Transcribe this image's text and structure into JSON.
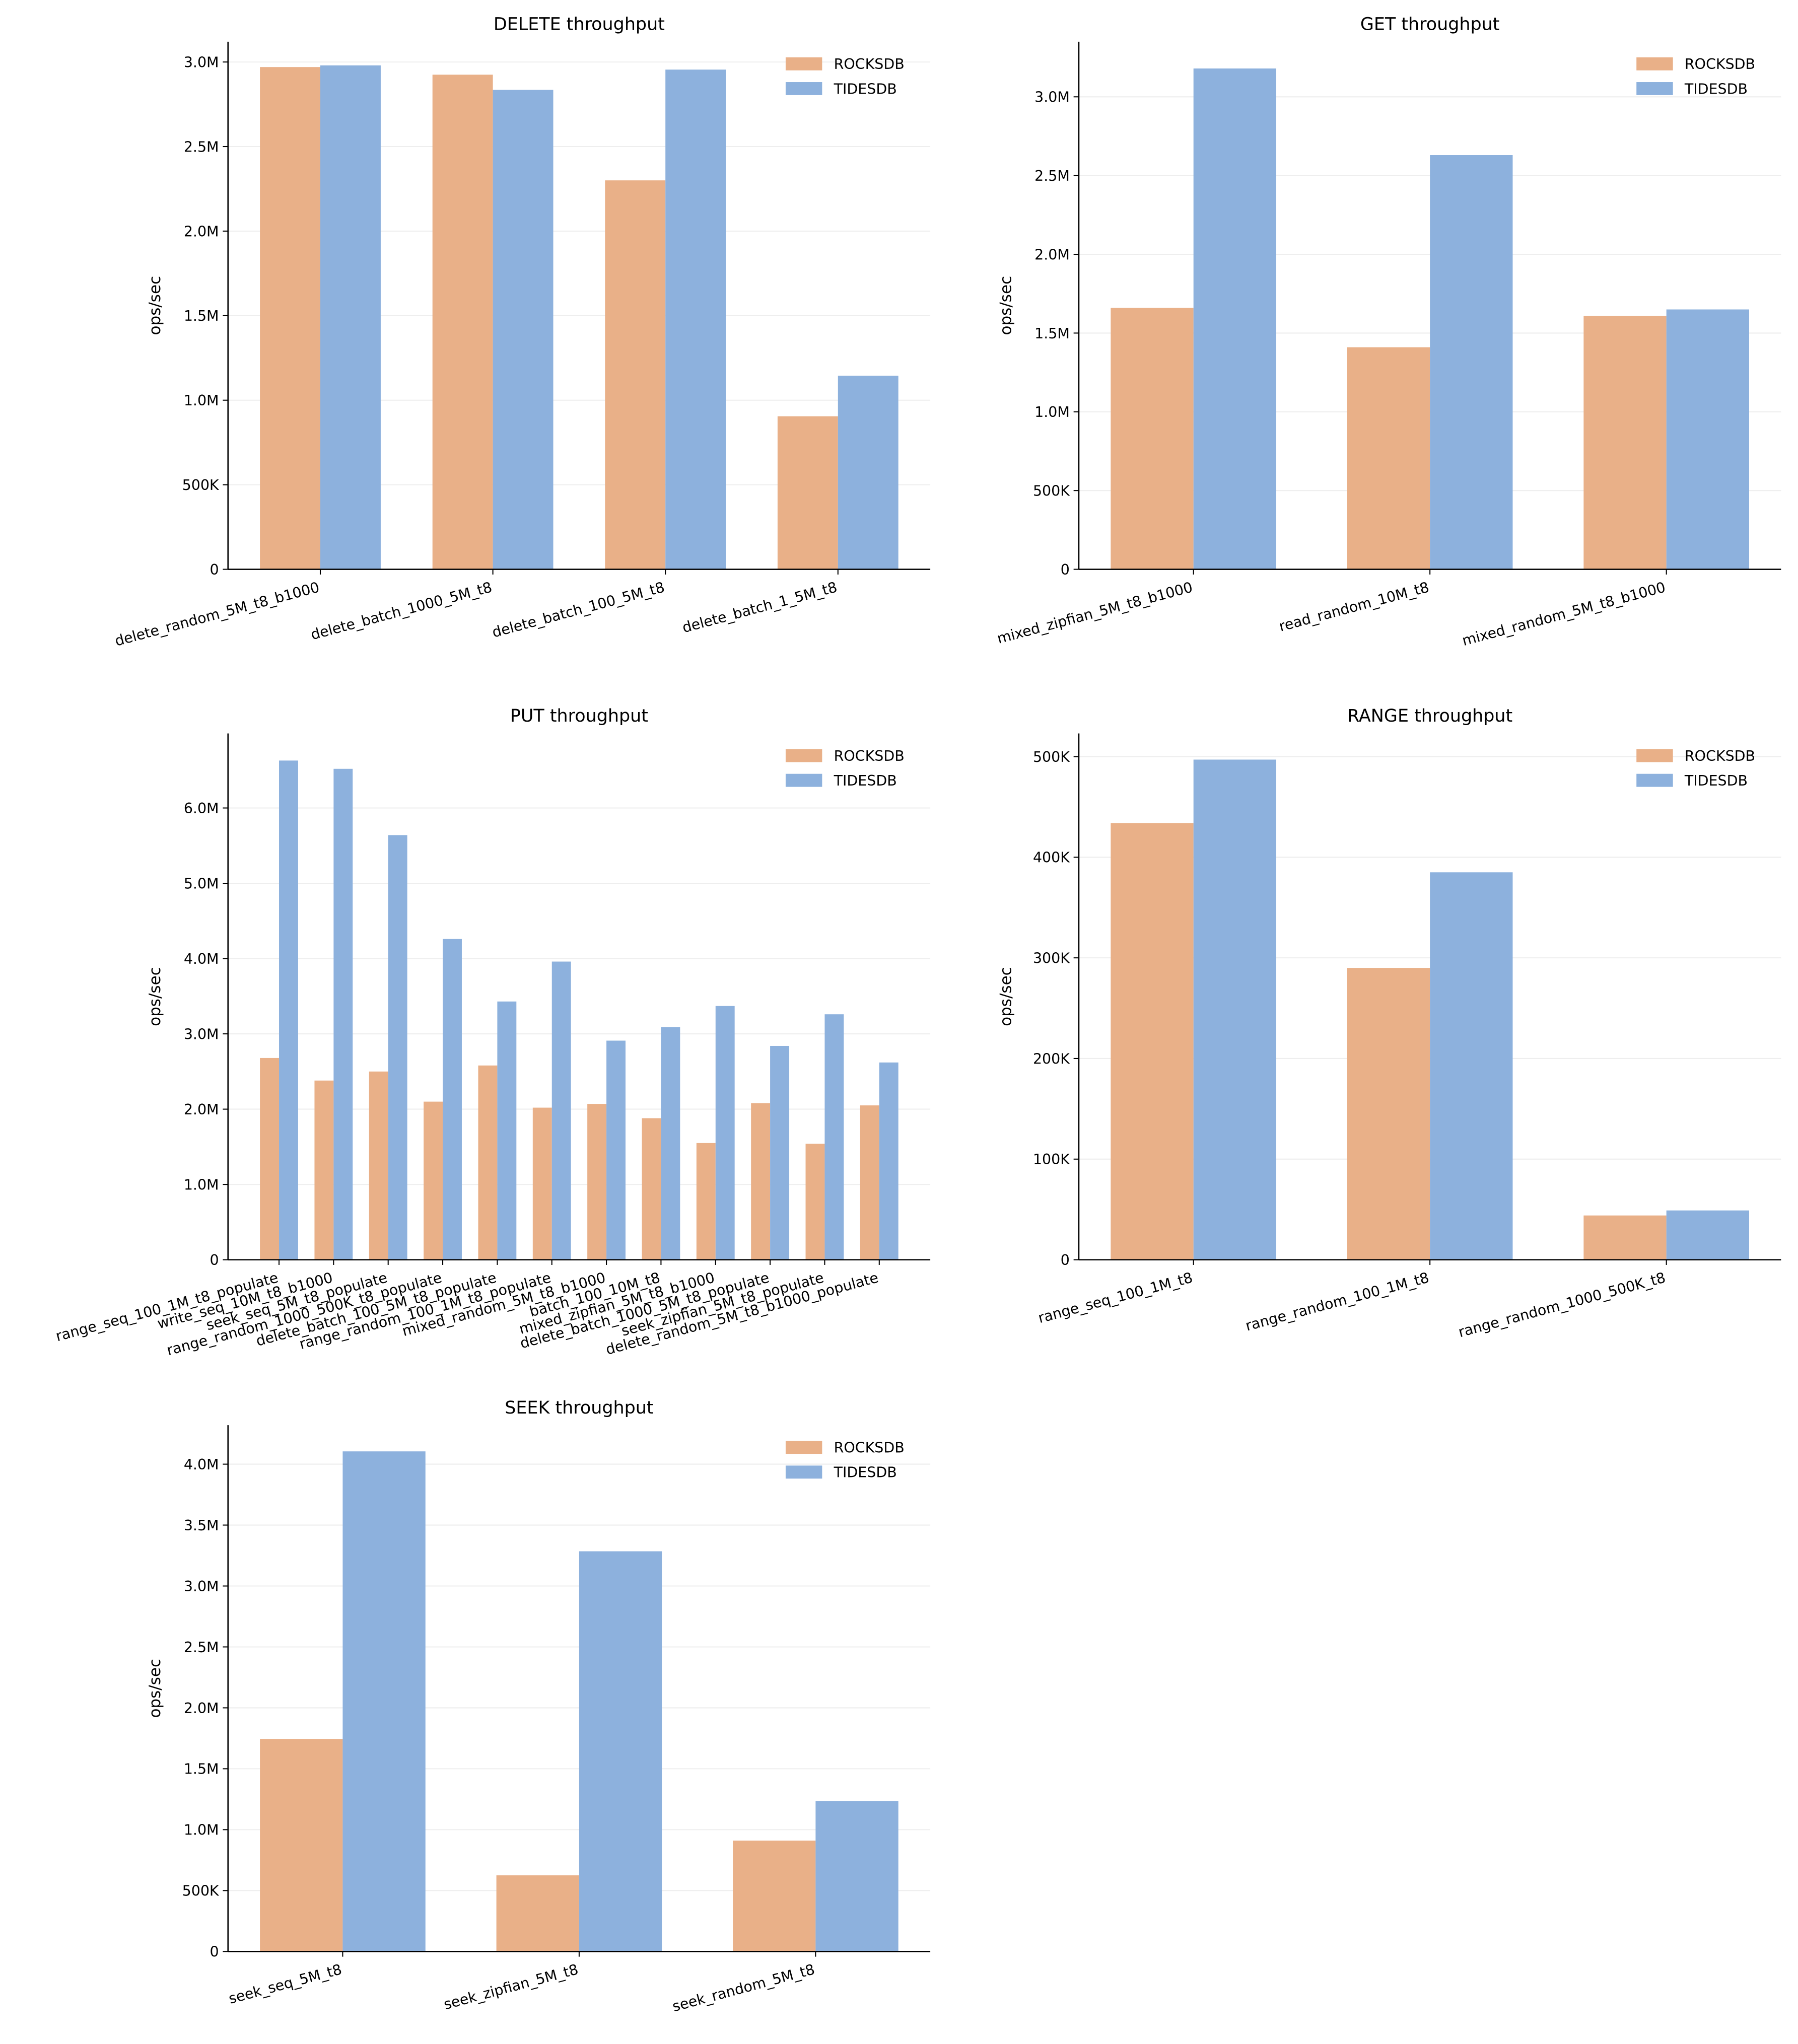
{
  "colors": {
    "ROCKSDB": "#E9B088",
    "TIDESDB": "#8DB1DD",
    "grid": "#EEEEEE"
  },
  "chart_data": [
    {
      "type": "bar",
      "title": "DELETE throughput",
      "ylabel": "ops/sec",
      "legend": "top-right",
      "grid": "y",
      "categories": [
        "delete_random_5M_t8_b1000",
        "delete_batch_1000_5M_t8",
        "delete_batch_100_5M_t8",
        "delete_batch_1_5M_t8"
      ],
      "series": [
        {
          "name": "ROCKSDB",
          "values": [
            2970000,
            2925000,
            2300000,
            905000
          ]
        },
        {
          "name": "TIDESDB",
          "values": [
            2980000,
            2835000,
            2955000,
            1145000
          ]
        }
      ],
      "ylim": [
        0,
        3120000
      ],
      "yticks": [
        0,
        500000,
        1000000,
        1500000,
        2000000,
        2500000,
        3000000
      ],
      "ytick_labels": [
        "0",
        "500K",
        "1.0M",
        "1.5M",
        "2.0M",
        "2.5M",
        "3.0M"
      ]
    },
    {
      "type": "bar",
      "title": "GET throughput",
      "ylabel": "ops/sec",
      "legend": "top-right",
      "grid": "y",
      "categories": [
        "mixed_zipfian_5M_t8_b1000",
        "read_random_10M_t8",
        "mixed_random_5M_t8_b1000"
      ],
      "series": [
        {
          "name": "ROCKSDB",
          "values": [
            1660000,
            1410000,
            1610000
          ]
        },
        {
          "name": "TIDESDB",
          "values": [
            3180000,
            2630000,
            1650000
          ]
        }
      ],
      "ylim": [
        0,
        3350000
      ],
      "yticks": [
        0,
        500000,
        1000000,
        1500000,
        2000000,
        2500000,
        3000000
      ],
      "ytick_labels": [
        "0",
        "500K",
        "1.0M",
        "1.5M",
        "2.0M",
        "2.5M",
        "3.0M"
      ]
    },
    {
      "type": "bar",
      "title": "PUT throughput",
      "ylabel": "ops/sec",
      "legend": "top-right",
      "grid": "y",
      "categories": [
        "range_seq_100_1M_t8_populate",
        "write_seq_10M_t8_b1000",
        "seek_seq_5M_t8_populate",
        "range_random_1000_500K_t8_populate",
        "delete_batch_100_5M_t8_populate",
        "range_random_100_1M_t8_populate",
        "mixed_random_5M_t8_b1000",
        "batch_100_10M_t8",
        "mixed_zipfian_5M_t8_b1000",
        "delete_batch_1000_5M_t8_populate",
        "seek_zipfian_5M_t8_populate",
        "delete_random_5M_t8_b1000_populate"
      ],
      "series": [
        {
          "name": "ROCKSDB",
          "values": [
            2680000,
            2380000,
            2500000,
            2100000,
            2580000,
            2020000,
            2070000,
            1880000,
            1550000,
            2080000,
            1540000,
            2050000
          ]
        },
        {
          "name": "TIDESDB",
          "values": [
            6630000,
            6520000,
            5640000,
            4260000,
            3430000,
            3960000,
            2910000,
            3090000,
            3370000,
            2840000,
            3260000,
            2620000
          ]
        }
      ],
      "ylim": [
        0,
        6990000
      ],
      "yticks": [
        0,
        1000000,
        2000000,
        3000000,
        4000000,
        5000000,
        6000000
      ],
      "ytick_labels": [
        "0",
        "1.0M",
        "2.0M",
        "3.0M",
        "4.0M",
        "5.0M",
        "6.0M"
      ]
    },
    {
      "type": "bar",
      "title": "RANGE throughput",
      "ylabel": "ops/sec",
      "legend": "top-right",
      "grid": "y",
      "categories": [
        "range_seq_100_1M_t8",
        "range_random_100_1M_t8",
        "range_random_1000_500K_t8"
      ],
      "series": [
        {
          "name": "ROCKSDB",
          "values": [
            434000,
            290000,
            44000
          ]
        },
        {
          "name": "TIDESDB",
          "values": [
            497000,
            385000,
            49000
          ]
        }
      ],
      "ylim": [
        0,
        523000
      ],
      "yticks": [
        0,
        100000,
        200000,
        300000,
        400000,
        500000
      ],
      "ytick_labels": [
        "0",
        "100K",
        "200K",
        "300K",
        "400K",
        "500K"
      ]
    },
    {
      "type": "bar",
      "title": "SEEK throughput",
      "ylabel": "ops/sec",
      "legend": "top-right",
      "grid": "y",
      "categories": [
        "seek_seq_5M_t8",
        "seek_zipfian_5M_t8",
        "seek_random_5M_t8"
      ],
      "series": [
        {
          "name": "ROCKSDB",
          "values": [
            1745000,
            625000,
            910000
          ]
        },
        {
          "name": "TIDESDB",
          "values": [
            4105000,
            3285000,
            1235000
          ]
        }
      ],
      "ylim": [
        0,
        4320000
      ],
      "yticks": [
        0,
        500000,
        1000000,
        1500000,
        2000000,
        2500000,
        3000000,
        3500000,
        4000000
      ],
      "ytick_labels": [
        "0",
        "500K",
        "1.0M",
        "1.5M",
        "2.0M",
        "2.5M",
        "3.0M",
        "3.5M",
        "4.0M"
      ]
    }
  ]
}
